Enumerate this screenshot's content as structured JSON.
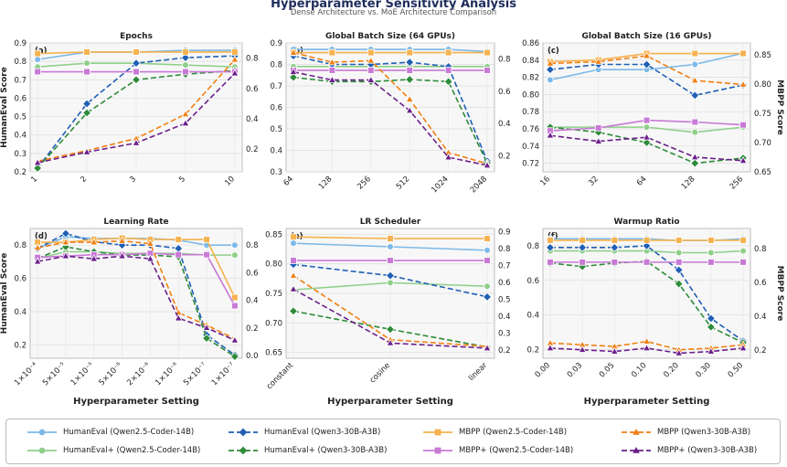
{
  "title": "Hyperparameter Sensitivity Analysis",
  "subtitle": "Dense Architecture vs. MoE Architecture Comparison",
  "chart_data": [
    {
      "type": "line",
      "panel": "(a)",
      "title": "Epochs",
      "categories": [
        "1",
        "2",
        "3",
        "5",
        "10"
      ],
      "ylabel": "HumanEval Score",
      "y2label": "",
      "ylim": [
        0.2,
        0.9
      ],
      "yticks": [
        0.2,
        0.3,
        0.4,
        0.5,
        0.6,
        0.7,
        0.8,
        0.9
      ],
      "y2lim": [
        0.05,
        0.9
      ],
      "y2ticks": [
        0.2,
        0.4,
        0.6,
        0.8
      ],
      "xlabel": "",
      "series": [
        {
          "name": "HumanEval (Qwen2.5-Coder-14B)",
          "axis": "left",
          "values": [
            0.81,
            0.85,
            0.85,
            0.86,
            0.86
          ]
        },
        {
          "name": "HumanEval+ (Qwen2.5-Coder-14B)",
          "axis": "left",
          "values": [
            0.77,
            0.79,
            0.79,
            0.78,
            0.77
          ]
        },
        {
          "name": "HumanEval (Qwen3-30B-A3B)",
          "axis": "left",
          "values": [
            0.22,
            0.57,
            0.79,
            0.82,
            0.83
          ]
        },
        {
          "name": "HumanEval+ (Qwen3-30B-A3B)",
          "axis": "left",
          "values": [
            0.22,
            0.52,
            0.7,
            0.73,
            0.75
          ]
        },
        {
          "name": "MBPP (Qwen2.5-Coder-14B)",
          "axis": "right",
          "values": [
            0.83,
            0.84,
            0.84,
            0.84,
            0.84
          ]
        },
        {
          "name": "MBPP+ (Qwen2.5-Coder-14B)",
          "axis": "right",
          "values": [
            0.71,
            0.71,
            0.71,
            0.71,
            0.71
          ]
        },
        {
          "name": "MBPP (Qwen3-30B-A3B)",
          "axis": "right",
          "values": [
            0.12,
            0.19,
            0.27,
            0.43,
            0.79
          ]
        },
        {
          "name": "MBPP+ (Qwen3-30B-A3B)",
          "axis": "right",
          "values": [
            0.11,
            0.18,
            0.24,
            0.37,
            0.7
          ]
        }
      ]
    },
    {
      "type": "line",
      "panel": "(b)",
      "title": "Global Batch Size (64 GPUs)",
      "categories": [
        "64",
        "128",
        "256",
        "512",
        "1024",
        "2048"
      ],
      "ylabel": "",
      "y2label": "",
      "ylim": [
        0.3,
        0.9
      ],
      "yticks": [
        0.3,
        0.4,
        0.5,
        0.6,
        0.7,
        0.8,
        0.9
      ],
      "y2lim": [
        0.1,
        0.9
      ],
      "y2ticks": [
        0.2,
        0.4,
        0.6,
        0.8
      ],
      "xlabel": "",
      "series": [
        {
          "name": "HumanEval (Qwen2.5-Coder-14B)",
          "axis": "left",
          "values": [
            0.87,
            0.87,
            0.87,
            0.87,
            0.87,
            0.86
          ]
        },
        {
          "name": "HumanEval+ (Qwen2.5-Coder-14B)",
          "axis": "left",
          "values": [
            0.79,
            0.79,
            0.79,
            0.79,
            0.79,
            0.79
          ]
        },
        {
          "name": "HumanEval (Qwen3-30B-A3B)",
          "axis": "left",
          "values": [
            0.84,
            0.8,
            0.8,
            0.81,
            0.79,
            0.35
          ]
        },
        {
          "name": "HumanEval+ (Qwen3-30B-A3B)",
          "axis": "left",
          "values": [
            0.74,
            0.72,
            0.72,
            0.73,
            0.72,
            0.34
          ]
        },
        {
          "name": "MBPP (Qwen2.5-Coder-14B)",
          "axis": "right",
          "values": [
            0.84,
            0.84,
            0.84,
            0.84,
            0.84,
            0.84
          ]
        },
        {
          "name": "MBPP+ (Qwen2.5-Coder-14B)",
          "axis": "right",
          "values": [
            0.73,
            0.73,
            0.73,
            0.73,
            0.73,
            0.73
          ]
        },
        {
          "name": "MBPP (Qwen3-30B-A3B)",
          "axis": "right",
          "values": [
            0.84,
            0.78,
            0.79,
            0.55,
            0.22,
            0.15
          ]
        },
        {
          "name": "MBPP+ (Qwen3-30B-A3B)",
          "axis": "right",
          "values": [
            0.72,
            0.67,
            0.67,
            0.48,
            0.19,
            0.14
          ]
        }
      ]
    },
    {
      "type": "line",
      "panel": "(c)",
      "title": "Global Batch Size (16 GPUs)",
      "categories": [
        "16",
        "32",
        "64",
        "128",
        "256"
      ],
      "ylabel": "",
      "y2label": "MBPP Score",
      "ylim": [
        0.71,
        0.86
      ],
      "yticks": [
        0.72,
        0.74,
        0.76,
        0.78,
        0.8,
        0.82,
        0.84,
        0.86
      ],
      "y2lim": [
        0.65,
        0.87
      ],
      "y2ticks": [
        0.65,
        0.7,
        0.75,
        0.8,
        0.85
      ],
      "xlabel": "",
      "series": [
        {
          "name": "HumanEval (Qwen2.5-Coder-14B)",
          "axis": "left",
          "values": [
            0.817,
            0.829,
            0.829,
            0.835,
            0.848
          ]
        },
        {
          "name": "HumanEval+ (Qwen2.5-Coder-14B)",
          "axis": "left",
          "values": [
            0.762,
            0.762,
            0.762,
            0.756,
            0.762
          ]
        },
        {
          "name": "HumanEval (Qwen3-30B-A3B)",
          "axis": "left",
          "values": [
            0.829,
            0.835,
            0.835,
            0.799,
            0.811
          ]
        },
        {
          "name": "HumanEval+ (Qwen3-30B-A3B)",
          "axis": "left",
          "values": [
            0.762,
            0.756,
            0.744,
            0.72,
            0.726
          ]
        },
        {
          "name": "MBPP (Qwen2.5-Coder-14B)",
          "axis": "right",
          "values": [
            0.838,
            0.841,
            0.852,
            0.852,
            0.852
          ]
        },
        {
          "name": "MBPP+ (Qwen2.5-Coder-14B)",
          "axis": "right",
          "values": [
            0.72,
            0.725,
            0.738,
            0.735,
            0.73
          ]
        },
        {
          "name": "MBPP (Qwen3-30B-A3B)",
          "axis": "right",
          "values": [
            0.835,
            0.838,
            0.848,
            0.806,
            0.799
          ]
        },
        {
          "name": "MBPP+ (Qwen3-30B-A3B)",
          "axis": "right",
          "values": [
            0.712,
            0.702,
            0.709,
            0.675,
            0.669
          ]
        }
      ]
    },
    {
      "type": "line",
      "panel": "(d)",
      "title": "Learning Rate",
      "categories": [
        "1×10⁻⁴",
        "5×10⁻⁵",
        "1×10⁻⁵",
        "5×10⁻⁶",
        "2×10⁻⁶",
        "1×10⁻⁶",
        "5×10⁻⁷",
        "1×10⁻⁷"
      ],
      "ylabel": "HumanEval Score",
      "y2label": "",
      "ylim": [
        0.12,
        0.9
      ],
      "yticks": [
        0.2,
        0.4,
        0.6,
        0.8
      ],
      "y2lim": [
        -0.02,
        0.92
      ],
      "y2ticks": [
        0.0,
        0.2,
        0.4,
        0.6,
        0.8
      ],
      "xlabel": "Hyperparameter Setting",
      "series": [
        {
          "name": "HumanEval (Qwen2.5-Coder-14B)",
          "axis": "left",
          "values": [
            0.78,
            0.85,
            0.84,
            0.84,
            0.84,
            0.83,
            0.8,
            0.8
          ]
        },
        {
          "name": "HumanEval+ (Qwen2.5-Coder-14B)",
          "axis": "left",
          "values": [
            0.72,
            0.76,
            0.76,
            0.75,
            0.75,
            0.75,
            0.74,
            0.74
          ]
        },
        {
          "name": "HumanEval (Qwen3-30B-A3B)",
          "axis": "left",
          "values": [
            0.78,
            0.87,
            0.82,
            0.8,
            0.8,
            0.78,
            0.26,
            0.14
          ]
        },
        {
          "name": "HumanEval+ (Qwen3-30B-A3B)",
          "axis": "left",
          "values": [
            0.72,
            0.79,
            0.76,
            0.74,
            0.74,
            0.73,
            0.24,
            0.13
          ]
        },
        {
          "name": "MBPP (Qwen2.5-Coder-14B)",
          "axis": "right",
          "values": [
            0.82,
            0.82,
            0.84,
            0.85,
            0.84,
            0.84,
            0.84,
            0.42
          ]
        },
        {
          "name": "MBPP+ (Qwen2.5-Coder-14B)",
          "axis": "right",
          "values": [
            0.71,
            0.72,
            0.73,
            0.73,
            0.74,
            0.73,
            0.73,
            0.36
          ]
        },
        {
          "name": "MBPP (Qwen3-30B-A3B)",
          "axis": "right",
          "values": [
            0.78,
            0.82,
            0.82,
            0.83,
            0.81,
            0.31,
            0.22,
            0.12
          ]
        },
        {
          "name": "MBPP+ (Qwen3-30B-A3B)",
          "axis": "right",
          "values": [
            0.68,
            0.72,
            0.7,
            0.72,
            0.7,
            0.27,
            0.2,
            0.11
          ]
        }
      ]
    },
    {
      "type": "line",
      "panel": "(e)",
      "title": "LR Scheduler",
      "categories": [
        "constant",
        "cosine",
        "linear"
      ],
      "ylabel": "",
      "y2label": "",
      "ylim": [
        0.64,
        0.86
      ],
      "yticks": [
        0.65,
        0.7,
        0.75,
        0.8,
        0.85
      ],
      "y2lim": [
        0.15,
        0.92
      ],
      "y2ticks": [
        0.2,
        0.3,
        0.4,
        0.5,
        0.6,
        0.7,
        0.8,
        0.9
      ],
      "xlabel": "Hyperparameter Setting",
      "series": [
        {
          "name": "HumanEval (Qwen2.5-Coder-14B)",
          "axis": "left",
          "values": [
            0.835,
            0.829,
            0.823
          ]
        },
        {
          "name": "HumanEval+ (Qwen2.5-Coder-14B)",
          "axis": "left",
          "values": [
            0.756,
            0.768,
            0.762
          ]
        },
        {
          "name": "HumanEval (Qwen3-30B-A3B)",
          "axis": "left",
          "values": [
            0.799,
            0.78,
            0.744
          ]
        },
        {
          "name": "HumanEval+ (Qwen3-30B-A3B)",
          "axis": "left",
          "values": [
            0.72,
            0.689,
            0.659
          ]
        },
        {
          "name": "MBPP (Qwen2.5-Coder-14B)",
          "axis": "right",
          "values": [
            0.87,
            0.86,
            0.86
          ]
        },
        {
          "name": "MBPP+ (Qwen2.5-Coder-14B)",
          "axis": "right",
          "values": [
            0.73,
            0.73,
            0.73
          ]
        },
        {
          "name": "MBPP (Qwen3-30B-A3B)",
          "axis": "right",
          "values": [
            0.64,
            0.26,
            0.22
          ]
        },
        {
          "name": "MBPP+ (Qwen3-30B-A3B)",
          "axis": "right",
          "values": [
            0.56,
            0.24,
            0.21
          ]
        }
      ]
    },
    {
      "type": "line",
      "panel": "(f)",
      "title": "Warmup Ratio",
      "categories": [
        "0.00",
        "0.03",
        "0.05",
        "0.10",
        "0.20",
        "0.30",
        "0.50"
      ],
      "ylabel": "",
      "y2label": "MBPP Score",
      "ylim": [
        0.15,
        0.9
      ],
      "yticks": [
        0.2,
        0.4,
        0.6,
        0.8
      ],
      "y2lim": [
        0.15,
        0.92
      ],
      "y2ticks": [
        0.2,
        0.4,
        0.6,
        0.8
      ],
      "xlabel": "Hyperparameter Setting",
      "series": [
        {
          "name": "HumanEval (Qwen2.5-Coder-14B)",
          "axis": "left",
          "values": [
            0.84,
            0.84,
            0.84,
            0.84,
            0.83,
            0.83,
            0.84
          ]
        },
        {
          "name": "HumanEval+ (Qwen2.5-Coder-14B)",
          "axis": "left",
          "values": [
            0.77,
            0.77,
            0.77,
            0.77,
            0.76,
            0.76,
            0.77
          ]
        },
        {
          "name": "HumanEval (Qwen3-30B-A3B)",
          "axis": "left",
          "values": [
            0.79,
            0.79,
            0.79,
            0.8,
            0.66,
            0.38,
            0.25
          ]
        },
        {
          "name": "HumanEval+ (Qwen3-30B-A3B)",
          "axis": "left",
          "values": [
            0.7,
            0.68,
            0.7,
            0.71,
            0.58,
            0.33,
            0.24
          ]
        },
        {
          "name": "MBPP (Qwen2.5-Coder-14B)",
          "axis": "right",
          "values": [
            0.85,
            0.85,
            0.85,
            0.85,
            0.85,
            0.85,
            0.85
          ]
        },
        {
          "name": "MBPP+ (Qwen2.5-Coder-14B)",
          "axis": "right",
          "values": [
            0.72,
            0.72,
            0.72,
            0.72,
            0.72,
            0.72,
            0.72
          ]
        },
        {
          "name": "MBPP (Qwen3-30B-A3B)",
          "axis": "right",
          "values": [
            0.24,
            0.23,
            0.22,
            0.25,
            0.2,
            0.21,
            0.23
          ]
        },
        {
          "name": "MBPP+ (Qwen3-30B-A3B)",
          "axis": "right",
          "values": [
            0.21,
            0.2,
            0.19,
            0.21,
            0.18,
            0.19,
            0.21
          ]
        }
      ]
    }
  ],
  "styles": {
    "HumanEval (Qwen2.5-Coder-14B)": {
      "color": "#7cb9e8",
      "dash": "solid",
      "marker": "circle"
    },
    "HumanEval+ (Qwen2.5-Coder-14B)": {
      "color": "#8fcf8a",
      "dash": "solid",
      "marker": "circle"
    },
    "HumanEval (Qwen3-30B-A3B)": {
      "color": "#1f5fb4",
      "dash": "dashed",
      "marker": "diamond"
    },
    "HumanEval+ (Qwen3-30B-A3B)": {
      "color": "#2e8b3a",
      "dash": "dashed",
      "marker": "diamond"
    },
    "MBPP (Qwen2.5-Coder-14B)": {
      "color": "#f5b24e",
      "dash": "solid",
      "marker": "square"
    },
    "MBPP+ (Qwen2.5-Coder-14B)": {
      "color": "#c879d6",
      "dash": "solid",
      "marker": "square"
    },
    "MBPP (Qwen3-30B-A3B)": {
      "color": "#f07f12",
      "dash": "dashed",
      "marker": "triangle"
    },
    "MBPP+ (Qwen3-30B-A3B)": {
      "color": "#6a1f8a",
      "dash": "dashed",
      "marker": "triangle"
    }
  },
  "legend": {
    "placement": "bottom",
    "items": [
      "HumanEval (Qwen2.5-Coder-14B)",
      "HumanEval (Qwen3-30B-A3B)",
      "MBPP (Qwen2.5-Coder-14B)",
      "MBPP (Qwen3-30B-A3B)",
      "HumanEval+ (Qwen2.5-Coder-14B)",
      "HumanEval+ (Qwen3-30B-A3B)",
      "MBPP+ (Qwen2.5-Coder-14B)",
      "MBPP+ (Qwen3-30B-A3B)"
    ]
  }
}
